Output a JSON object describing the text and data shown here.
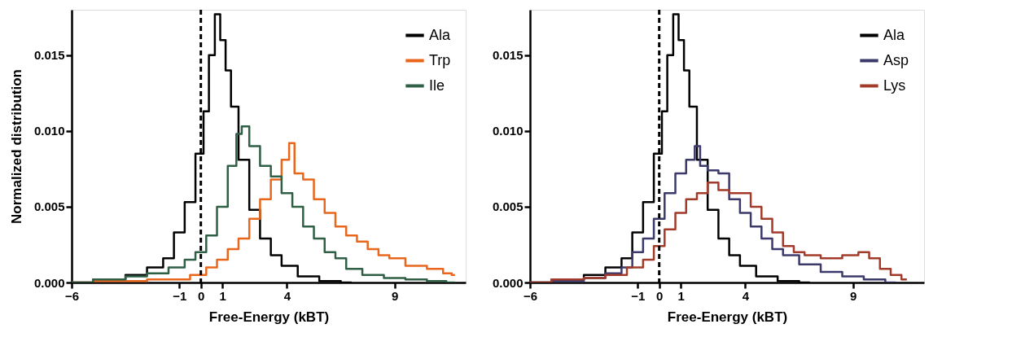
{
  "chart_data": [
    {
      "type": "step",
      "xlabel": "Free-Energy (kBT)",
      "ylabel": "Normalized distribution",
      "xlim": [
        -6,
        12.3
      ],
      "ylim": [
        0,
        0.018
      ],
      "xticks": [
        -6,
        -1,
        0,
        1,
        4,
        9
      ],
      "yticks": [
        {
          "value": 0,
          "label": "0.000"
        },
        {
          "value": 0.005,
          "label": "0.005"
        },
        {
          "value": 0.01,
          "label": "0.010"
        },
        {
          "value": 0.015,
          "label": "0.015"
        }
      ],
      "grid": false,
      "legend": "top right",
      "ref_lines": [
        {
          "axis": "x",
          "value": 0,
          "line_style": "dashed",
          "color": "#000000"
        }
      ],
      "series": [
        {
          "name": "Ala",
          "color": "#000000",
          "x": [
            -6,
            -4,
            -3,
            -2,
            -1.5,
            -1,
            -0.5,
            0,
            0.25,
            0.5,
            0.8,
            1,
            1.3,
            1.5,
            2,
            2.5,
            3,
            3.5,
            4,
            5,
            6,
            7
          ],
          "values": [
            0,
            0.0002,
            0.0005,
            0.001,
            0.0016,
            0.0033,
            0.0053,
            0.0085,
            0.0113,
            0.015,
            0.0177,
            0.016,
            0.014,
            0.0116,
            0.0081,
            0.0048,
            0.0029,
            0.0018,
            0.0011,
            0.0004,
            0.0001,
            0
          ]
        },
        {
          "name": "Trp",
          "color": "#e8671c",
          "x": [
            -6,
            -4,
            -1,
            0,
            0.5,
            1,
            1.5,
            2,
            2.5,
            3,
            3.5,
            4,
            4.2,
            4.5,
            5,
            5.5,
            6,
            6.5,
            7,
            7.5,
            8,
            8.5,
            9,
            10,
            11,
            11.5,
            11.8
          ],
          "values": [
            0,
            0.0001,
            0.0002,
            0.0005,
            0.001,
            0.0015,
            0.0022,
            0.0029,
            0.0042,
            0.0055,
            0.0068,
            0.0081,
            0.0092,
            0.0072,
            0.0068,
            0.0055,
            0.0046,
            0.0037,
            0.0031,
            0.0027,
            0.0022,
            0.0018,
            0.0016,
            0.0011,
            0.0009,
            0.0006,
            0.0005
          ]
        },
        {
          "name": "Ile",
          "color": "#2f5f45",
          "x": [
            -6,
            -4,
            -3,
            -2,
            -1,
            -0.5,
            0,
            0.5,
            1,
            1.5,
            1.8,
            2,
            2.5,
            3,
            3.5,
            4,
            4.5,
            5,
            5.5,
            6,
            6.5,
            7,
            8,
            9,
            10,
            11,
            11.8
          ],
          "values": [
            0,
            0.0002,
            0.0004,
            0.0006,
            0.001,
            0.0015,
            0.002,
            0.0031,
            0.005,
            0.0077,
            0.0098,
            0.0103,
            0.009,
            0.0077,
            0.007,
            0.0059,
            0.005,
            0.0037,
            0.0029,
            0.002,
            0.0016,
            0.0009,
            0.0005,
            0.0003,
            0.0002,
            0.0001,
            0
          ]
        }
      ]
    },
    {
      "type": "step",
      "xlabel": "Free-Energy (kBT)",
      "xlim": [
        -6,
        12.3
      ],
      "ylim": [
        0,
        0.018
      ],
      "xticks": [
        -6,
        -1,
        0,
        1,
        4,
        9
      ],
      "yticks": [
        {
          "value": 0,
          "label": "0.000"
        },
        {
          "value": 0.005,
          "label": "0.005"
        },
        {
          "value": 0.01,
          "label": "0.010"
        },
        {
          "value": 0.015,
          "label": "0.015"
        }
      ],
      "grid": false,
      "legend": "top right",
      "ref_lines": [
        {
          "axis": "x",
          "value": 0,
          "line_style": "dashed",
          "color": "#000000"
        }
      ],
      "series": [
        {
          "name": "Ala",
          "color": "#000000",
          "x": [
            -6,
            -4,
            -3,
            -2,
            -1.5,
            -1,
            -0.5,
            0,
            0.25,
            0.5,
            0.8,
            1,
            1.3,
            1.5,
            2,
            2.5,
            3,
            3.5,
            4,
            5,
            6,
            7
          ],
          "values": [
            0,
            0.0002,
            0.0005,
            0.001,
            0.0016,
            0.0033,
            0.0053,
            0.0085,
            0.0113,
            0.015,
            0.0177,
            0.016,
            0.014,
            0.0116,
            0.0081,
            0.0048,
            0.0029,
            0.0018,
            0.0011,
            0.0004,
            0.0001,
            0
          ]
        },
        {
          "name": "Asp",
          "color": "#3b3a6b",
          "x": [
            -6,
            -4,
            -3,
            -2,
            -1.5,
            -1,
            -0.5,
            0,
            0.5,
            1,
            1.5,
            1.8,
            2,
            2.5,
            3,
            3.5,
            4,
            4.5,
            5,
            5.5,
            6,
            7,
            8,
            9,
            10,
            11
          ],
          "values": [
            0,
            0.0001,
            0.0003,
            0.0006,
            0.001,
            0.002,
            0.0029,
            0.0042,
            0.0059,
            0.0072,
            0.0081,
            0.009,
            0.0077,
            0.0074,
            0.0072,
            0.0055,
            0.0046,
            0.0037,
            0.0029,
            0.0022,
            0.0018,
            0.0012,
            0.0007,
            0.0004,
            0.0002,
            0
          ]
        },
        {
          "name": "Lys",
          "color": "#a23b2a",
          "x": [
            -6,
            -4,
            -3,
            -2,
            -1,
            -0.5,
            0,
            0.5,
            1,
            1.5,
            2,
            2.5,
            3,
            3.5,
            4,
            4.5,
            5,
            5.5,
            6,
            6.5,
            7,
            8,
            9,
            9.5,
            10,
            10.5,
            11,
            11.5
          ],
          "values": [
            0,
            0.0002,
            0.0003,
            0.0005,
            0.001,
            0.0015,
            0.0024,
            0.0035,
            0.0046,
            0.0055,
            0.0059,
            0.0066,
            0.0061,
            0.0059,
            0.0059,
            0.005,
            0.0042,
            0.0033,
            0.0024,
            0.002,
            0.0018,
            0.0016,
            0.0018,
            0.002,
            0.0016,
            0.0009,
            0.0005,
            0.0002
          ]
        }
      ]
    }
  ]
}
